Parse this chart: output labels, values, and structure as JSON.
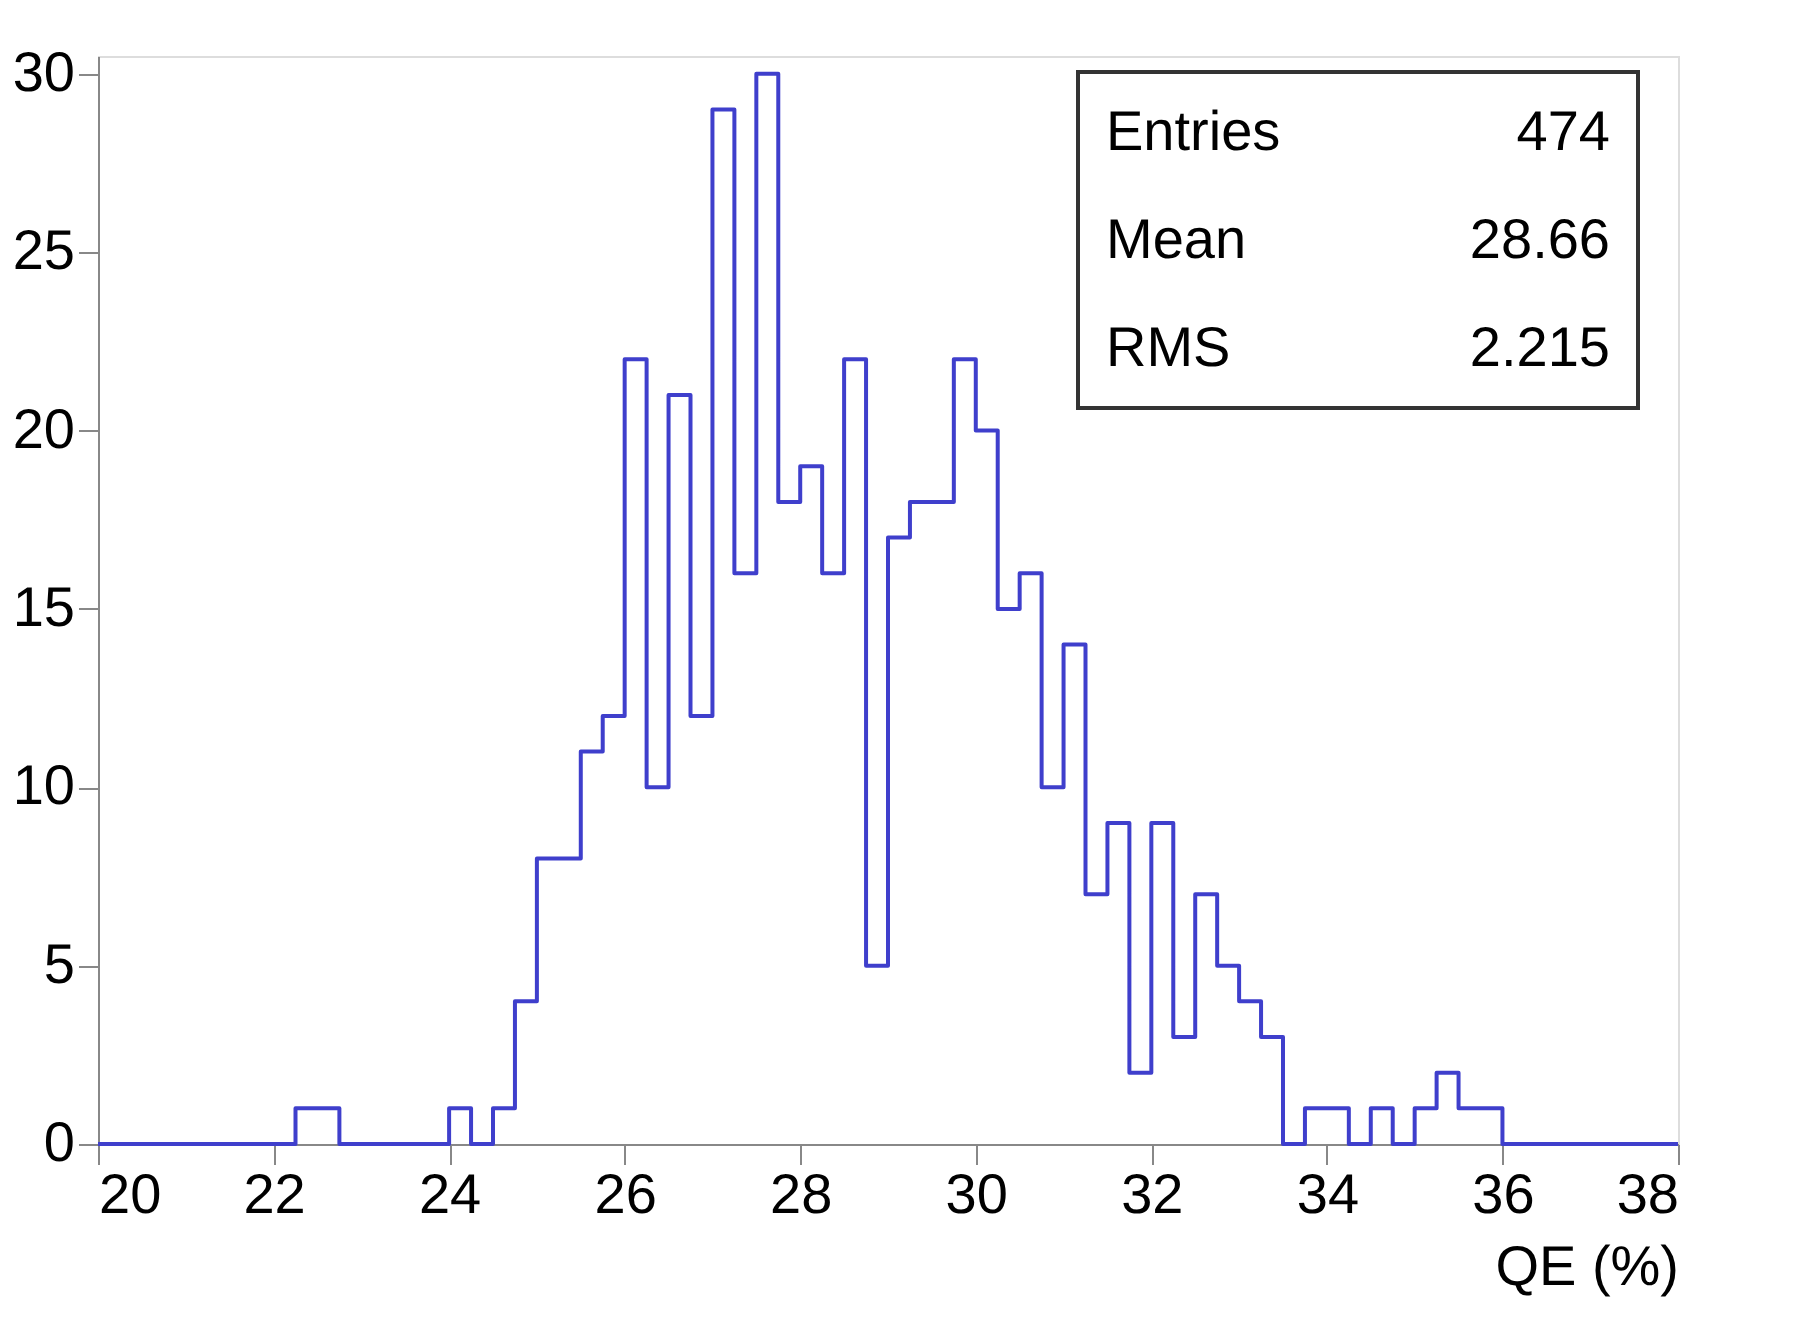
{
  "chart_data": {
    "type": "histogram",
    "xlabel": "QE (%)",
    "bins": [
      20,
      20.25,
      20.5,
      20.75,
      21,
      21.25,
      21.5,
      21.75,
      22,
      22.25,
      22.5,
      22.75,
      23,
      23.25,
      23.5,
      23.75,
      24,
      24.25,
      24.5,
      24.75,
      25,
      25.25,
      25.5,
      25.75,
      26,
      26.25,
      26.5,
      26.75,
      27,
      27.25,
      27.5,
      27.75,
      28,
      28.25,
      28.5,
      28.75,
      29,
      29.25,
      29.5,
      29.75,
      30,
      30.25,
      30.5,
      30.75,
      31,
      31.25,
      31.5,
      31.75,
      32,
      32.25,
      32.5,
      32.75,
      33,
      33.25,
      33.5,
      33.75,
      34,
      34.25,
      34.5,
      34.75,
      35,
      35.25,
      35.5,
      35.75,
      36,
      36.25,
      36.5,
      36.75,
      37,
      37.25,
      37.5,
      37.75,
      38
    ],
    "values": [
      0,
      0,
      0,
      0,
      0,
      0,
      0,
      0,
      0,
      1,
      1,
      0,
      0,
      0,
      0,
      0,
      1,
      0,
      1,
      4,
      8,
      8,
      11,
      12,
      22,
      10,
      21,
      12,
      29,
      16,
      30,
      18,
      19,
      16,
      22,
      5,
      17,
      18,
      18,
      22,
      20,
      15,
      16,
      10,
      14,
      7,
      9,
      2,
      9,
      3,
      7,
      5,
      4,
      3,
      0,
      1,
      1,
      0,
      1,
      0,
      1,
      2,
      1,
      1,
      0,
      0,
      0,
      0,
      0,
      0,
      0,
      0
    ],
    "color": "#3f3fcc",
    "xlim": [
      20,
      38
    ],
    "xticks": [
      20,
      22,
      24,
      26,
      28,
      30,
      32,
      34,
      36,
      38
    ],
    "ylim": [
      0,
      30.5
    ],
    "yticks": [
      0,
      5,
      10,
      15,
      20,
      25,
      30
    ],
    "grid": false,
    "annotations": [
      "Entries 474",
      "Mean 28.66",
      "RMS 2.215"
    ]
  }
}
